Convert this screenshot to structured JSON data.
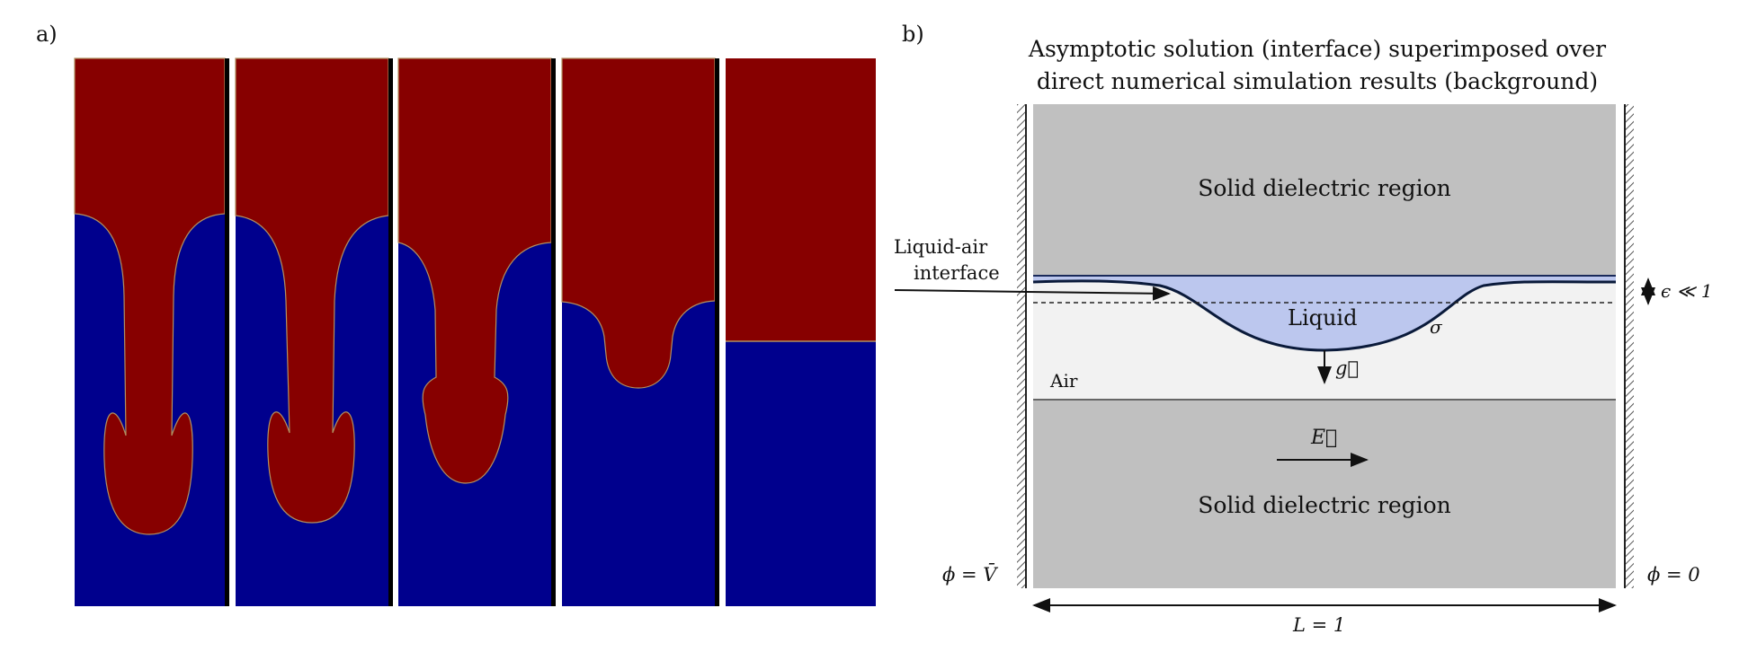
{
  "panel_a": {
    "label": "a)",
    "colors": {
      "liquid": "#870000",
      "air": "#00008d",
      "separator": "#000000"
    },
    "frames": [
      {
        "index": 1,
        "description": "liquid finger with two side lobes, deepest penetration"
      },
      {
        "index": 2,
        "description": "liquid finger with side lobes"
      },
      {
        "index": 3,
        "description": "shorter finger with detached-looking bulb"
      },
      {
        "index": 4,
        "description": "shallow rounded depression"
      },
      {
        "index": 5,
        "description": "nearly flat interface"
      }
    ]
  },
  "panel_b": {
    "label": "b)",
    "title_line1": "Asymptotic solution (interface) superimposed over",
    "title_line2": "direct numerical simulation results (background)",
    "top_region": "Solid dielectric region",
    "bottom_region": "Solid dielectric region",
    "interface_label_line1": "Liquid-air",
    "interface_label_line2": "interface",
    "liquid_label": "Liquid",
    "sigma_label": "σ",
    "gravity_label": "g⃗",
    "air_label": "Air",
    "field_label": "E⃗",
    "epsilon_label": "ϵ ≪ 1",
    "left_potential": "ϕ = V̄",
    "right_potential": "ϕ = 0",
    "length_label": "L = 1",
    "colors": {
      "solid": "#c0c0c0",
      "air": "#f2f2f2",
      "liquid": "#bcc7ee",
      "interface": "#0a1a3a"
    }
  }
}
